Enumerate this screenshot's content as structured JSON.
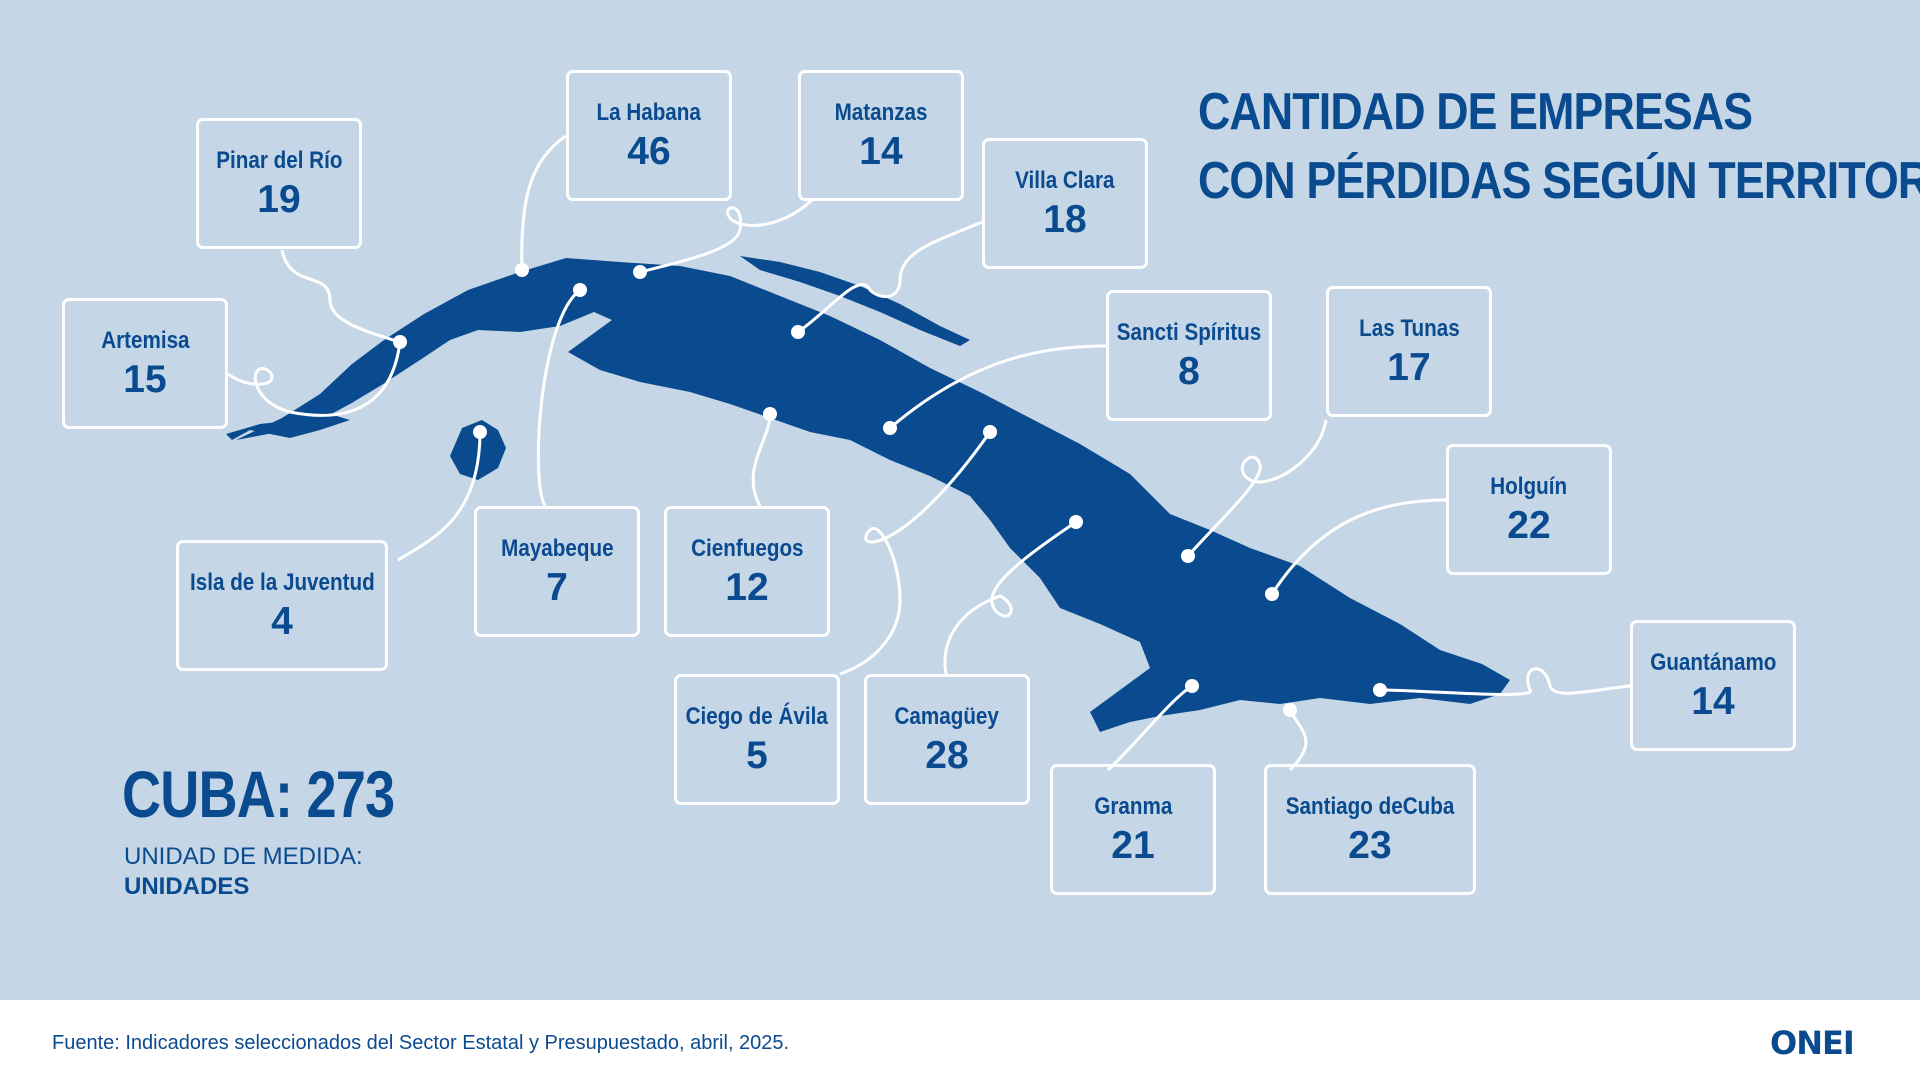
{
  "title": {
    "line1": "CANTIDAD DE EMPRESAS",
    "line2": "CON PÉRDIDAS SEGÚN TERRITORIO"
  },
  "provinces": [
    {
      "name": "Pinar del Río",
      "value": "19"
    },
    {
      "name": "La Habana",
      "value": "46"
    },
    {
      "name": "Matanzas",
      "value": "14"
    },
    {
      "name": "Villa Clara",
      "value": "18"
    },
    {
      "name": "Artemisa",
      "value": "15"
    },
    {
      "name": "Sancti Spíritus",
      "value": "8"
    },
    {
      "name": "Las Tunas",
      "value": "17"
    },
    {
      "name": "Holguín",
      "value": "22"
    },
    {
      "name": "Isla de la Juventud",
      "value": "4"
    },
    {
      "name": "Mayabeque",
      "value": "7"
    },
    {
      "name": "Cienfuegos",
      "value": "12"
    },
    {
      "name": "Guantánamo",
      "value": "14"
    },
    {
      "name": "Ciego de Ávila",
      "value": "5"
    },
    {
      "name": "Camagüey",
      "value": "28"
    },
    {
      "name": "Granma",
      "value": "21"
    },
    {
      "name": "Santiago deCuba",
      "value": "23"
    }
  ],
  "total": {
    "label": "CUBA: 273"
  },
  "unit": {
    "label": "UNIDAD DE MEDIDA:",
    "value": "UNIDADES"
  },
  "footer": {
    "source": "Fuente: Indicadores seleccionados del Sector Estatal y Presupuestado, abril, 2025.",
    "logo": "ONEI"
  },
  "colors": {
    "background": "#c5d6e6",
    "map": "#0a4a8f",
    "text": "#0a4a8f",
    "lines": "#ffffff"
  }
}
